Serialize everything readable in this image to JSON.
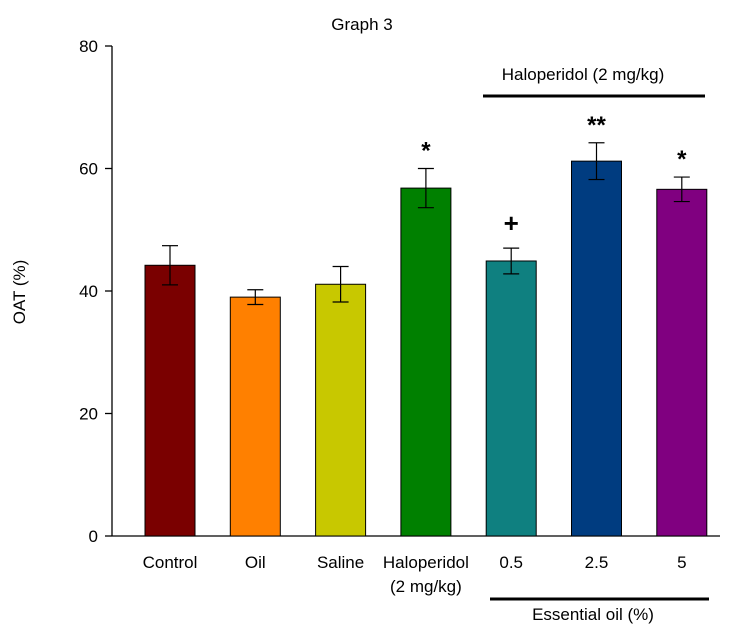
{
  "chart_data": {
    "type": "bar",
    "title": "Graph 3",
    "ylabel": "OAT (%)",
    "xlabel": "",
    "ylim": [
      0,
      80
    ],
    "yticks": [
      0,
      20,
      40,
      60,
      80
    ],
    "grid": false,
    "categories": [
      {
        "label": "Control",
        "sublabel": ""
      },
      {
        "label": "Oil",
        "sublabel": ""
      },
      {
        "label": "Saline",
        "sublabel": ""
      },
      {
        "label": "Haloperidol",
        "sublabel": "(2 mg/kg)"
      },
      {
        "label": "0.5",
        "sublabel": ""
      },
      {
        "label": "2.5",
        "sublabel": ""
      },
      {
        "label": "5",
        "sublabel": ""
      }
    ],
    "values": [
      44.2,
      39.0,
      41.1,
      56.8,
      44.9,
      61.2,
      56.6
    ],
    "errors": [
      3.2,
      1.2,
      2.9,
      3.2,
      2.1,
      3.0,
      2.0
    ],
    "markers": [
      "",
      "",
      "",
      "*",
      "+",
      "**",
      "*"
    ],
    "colors": [
      "#7a0000",
      "#ff8000",
      "#c8c800",
      "#008000",
      "#0f8080",
      "#003c80",
      "#800080"
    ],
    "group_labels": {
      "top": "Haloperidol (2 mg/kg)",
      "bottom": "Essential oil (%)"
    }
  }
}
